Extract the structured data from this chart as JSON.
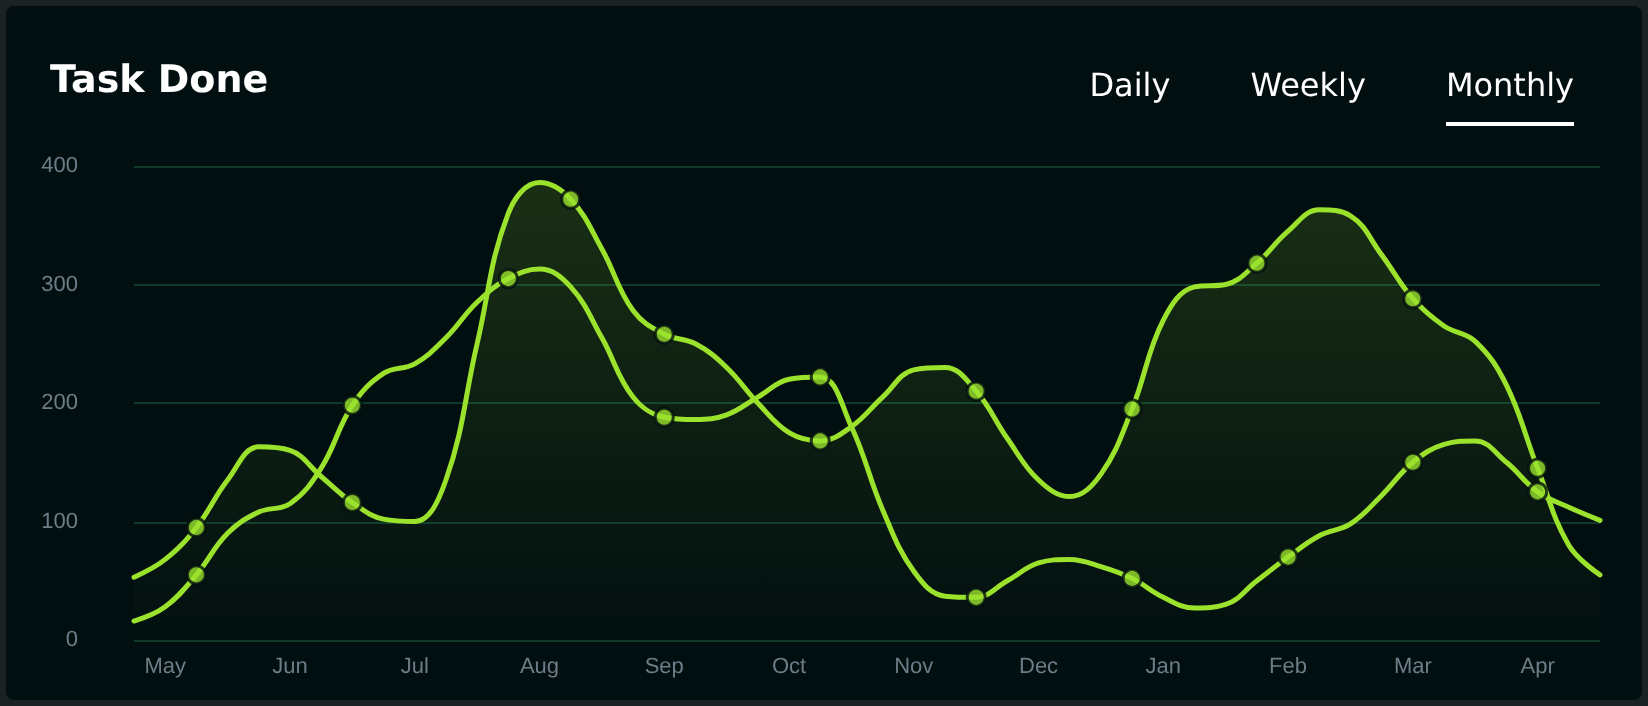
{
  "chart_data": {
    "type": "line",
    "title": "Task Done",
    "annotations": [
      "Daily",
      "Weekly",
      "Monthly"
    ],
    "categories": [
      null,
      "May",
      null,
      null,
      null,
      "Jun",
      null,
      null,
      null,
      "Jul",
      null,
      null,
      null,
      "Aug",
      null,
      null,
      null,
      "Sep",
      null,
      null,
      null,
      "Oct",
      null,
      null,
      null,
      "Nov",
      null,
      null,
      null,
      "Dec",
      null,
      null,
      null,
      "Jan",
      null,
      null,
      null,
      "Feb",
      null,
      null,
      null,
      "Mar",
      null,
      null,
      null,
      "Apr",
      null,
      null
    ],
    "ylim": [
      0,
      400
    ],
    "yticks": [
      0,
      100,
      200,
      300,
      400
    ],
    "grid": "y",
    "marker": "none",
    "line_style": "solid",
    "series": [
      {
        "type": "area",
        "color": "#9be22d",
        "values": [
          53,
          68,
          95,
          135,
          163,
          160,
          138,
          116,
          102,
          100,
          135,
          250,
          360,
          386,
          372,
          330,
          278,
          258,
          250,
          230,
          200,
          175,
          168,
          180,
          205,
          228,
          230,
          210,
          170,
          135,
          121,
          140,
          195,
          270,
          298,
          300,
          318,
          345,
          363,
          358,
          325,
          288,
          265,
          252,
          215,
          145,
          80,
          55
        ]
      },
      {
        "color": "#9be22d",
        "values": [
          16,
          28,
          55,
          90,
          108,
          115,
          145,
          198,
          225,
          233,
          255,
          285,
          305,
          313,
          298,
          255,
          205,
          188,
          186,
          190,
          205,
          220,
          222,
          180,
          110,
          58,
          37,
          36,
          50,
          65,
          68,
          62,
          52,
          36,
          27,
          30,
          50,
          70,
          88,
          98,
          122,
          150,
          165,
          168,
          150,
          125,
          112,
          101
        ]
      },
      {
        "type": "scatter",
        "marker": "circle",
        "color": "#9be22d",
        "values": [
          null,
          null,
          95,
          null,
          null,
          null,
          null,
          116,
          null,
          null,
          null,
          null,
          null,
          null,
          372,
          null,
          null,
          258,
          null,
          null,
          null,
          null,
          168,
          null,
          null,
          null,
          null,
          210,
          null,
          null,
          null,
          null,
          195,
          null,
          null,
          null,
          318,
          null,
          null,
          null,
          null,
          288,
          null,
          null,
          null,
          145,
          null,
          null
        ]
      },
      {
        "type": "scatter",
        "marker": "circle",
        "color": "#9be22d",
        "values": [
          null,
          null,
          55,
          null,
          null,
          null,
          null,
          198,
          null,
          null,
          null,
          null,
          305,
          null,
          null,
          null,
          null,
          188,
          null,
          null,
          null,
          null,
          222,
          null,
          null,
          null,
          null,
          36,
          null,
          null,
          null,
          null,
          52,
          null,
          null,
          null,
          null,
          70,
          null,
          null,
          null,
          150,
          null,
          null,
          null,
          125,
          null,
          null
        ]
      }
    ]
  }
}
